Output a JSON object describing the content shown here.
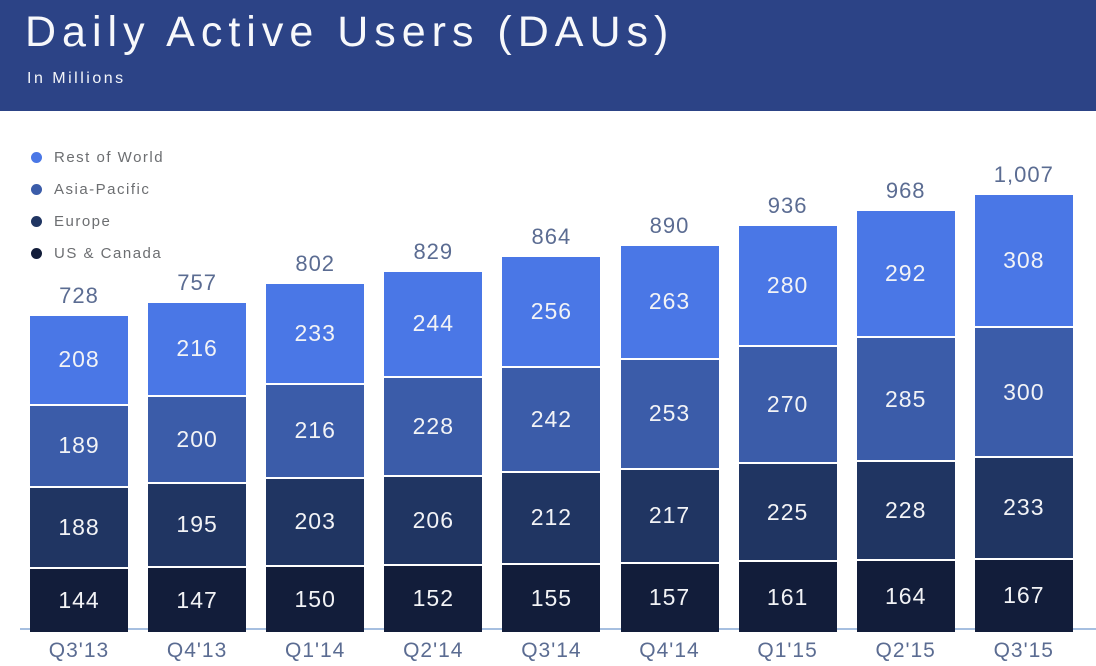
{
  "header": {
    "title": "Daily Active Users (DAUs)",
    "subtitle": "In Millions",
    "background_color": "#2c4386",
    "text_color": "#f7f8fb"
  },
  "legend": {
    "position": "top-left",
    "items": [
      {
        "label": "Rest of World",
        "color": "#4a77e6"
      },
      {
        "label": "Asia-Pacific",
        "color": "#3b5ca9"
      },
      {
        "label": "Europe",
        "color": "#203562"
      },
      {
        "label": "US & Canada",
        "color": "#121d3a"
      }
    ]
  },
  "chart_data": {
    "type": "bar",
    "stacked": true,
    "title": "Daily Active Users (DAUs)",
    "subtitle": "In Millions",
    "xlabel": "",
    "ylabel": "In Millions",
    "grid": false,
    "legend_position": "top-left",
    "axis_line_color": "#a6bfe0",
    "category_label_color": "#5b6c92",
    "total_label_color": "#5b6c92",
    "value_label_color": "#f2f3f6",
    "categories": [
      "Q3'13",
      "Q4'13",
      "Q1'14",
      "Q2'14",
      "Q3'14",
      "Q4'14",
      "Q1'15",
      "Q2'15",
      "Q3'15"
    ],
    "series": [
      {
        "name": "Rest of World",
        "color": "#4a77e6",
        "values": [
          208,
          216,
          233,
          244,
          256,
          263,
          280,
          292,
          308
        ]
      },
      {
        "name": "Asia-Pacific",
        "color": "#3b5ca9",
        "values": [
          189,
          200,
          216,
          228,
          242,
          253,
          270,
          285,
          300
        ]
      },
      {
        "name": "Europe",
        "color": "#203562",
        "values": [
          188,
          195,
          203,
          206,
          212,
          217,
          225,
          228,
          233
        ]
      },
      {
        "name": "US & Canada",
        "color": "#121d3a",
        "values": [
          144,
          147,
          150,
          152,
          155,
          157,
          161,
          164,
          167
        ]
      }
    ],
    "totals_display": [
      "728",
      "757",
      "802",
      "829",
      "864",
      "890",
      "936",
      "968",
      "1,007"
    ],
    "totals": [
      728,
      757,
      802,
      829,
      864,
      890,
      936,
      968,
      1007
    ]
  }
}
